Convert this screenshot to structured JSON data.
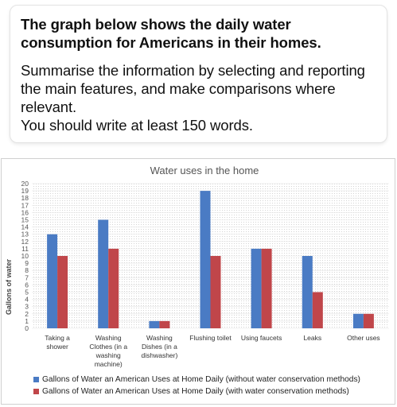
{
  "task": {
    "title": "The graph below shows the daily water consumption for Americans in their homes.",
    "instruction_lines": [
      "Summarise the information by selecting and reporting",
      "the main features, and make comparisons where",
      "relevant.",
      "You should write at least 150 words."
    ]
  },
  "chart_data": {
    "type": "bar",
    "title": "Water uses in the home",
    "ylabel": "Gallons of water",
    "xlabel": "",
    "ylim": [
      0,
      20
    ],
    "yticks": [
      0,
      1,
      2,
      3,
      4,
      5,
      6,
      7,
      8,
      9,
      10,
      11,
      12,
      13,
      14,
      15,
      16,
      17,
      18,
      19,
      20
    ],
    "grid": true,
    "legend_position": "bottom",
    "categories": [
      [
        "Taking a",
        "shower"
      ],
      [
        "Washing",
        "Clothes (in a",
        "washing",
        "machine)"
      ],
      [
        "Washing",
        "Dishes (in a",
        "dishwasher)"
      ],
      [
        "Flushing toilet"
      ],
      [
        "Using faucets"
      ],
      [
        "Leaks"
      ],
      [
        "Other uses"
      ]
    ],
    "series": [
      {
        "name": "Gallons of Water an American Uses at Home Daily (without water conservation methods)",
        "color": "#4a7bc4",
        "values": [
          13,
          15,
          1,
          19,
          11,
          10,
          2
        ]
      },
      {
        "name": "Gallons of Water an American Uses at Home Daily (with water conservation methods)",
        "color": "#c0464a",
        "values": [
          10,
          11,
          1,
          10,
          11,
          5,
          2
        ]
      }
    ]
  }
}
